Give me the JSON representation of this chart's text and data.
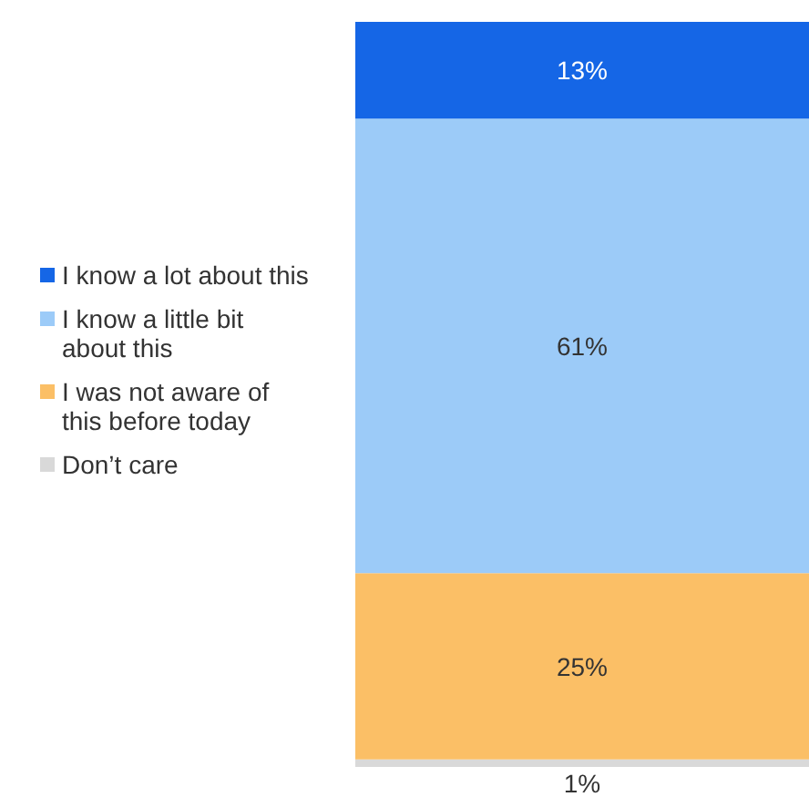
{
  "chart_data": {
    "type": "bar",
    "stacked": true,
    "categories": [
      null
    ],
    "legend": "left",
    "series": [
      {
        "name": "Don’t care",
        "color": "#d9d9d9",
        "values": [
          1
        ],
        "value_labels": [
          "1%"
        ]
      },
      {
        "name": "I was not aware of this before today",
        "color": "#fbbf66",
        "values": [
          25
        ],
        "value_labels": [
          "25%"
        ]
      },
      {
        "name": "I know a little bit about this",
        "color": "#9ccbf8",
        "values": [
          61
        ],
        "value_labels": [
          "61%"
        ]
      },
      {
        "name": "I know a lot about this",
        "color": "#1566e6",
        "values": [
          13
        ],
        "value_labels": [
          "13%"
        ]
      }
    ]
  }
}
